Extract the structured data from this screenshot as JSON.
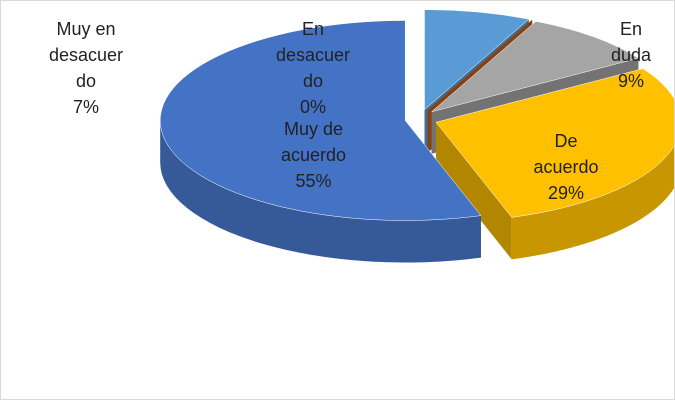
{
  "chart_data": {
    "type": "pie3d",
    "categories": [
      "Muy en desacuerdo",
      "En desacuerdo",
      "En duda",
      "De acuerdo",
      "Muy de acuerdo"
    ],
    "values": [
      7,
      0,
      9,
      29,
      55
    ],
    "value_labels": [
      "7%",
      "0%",
      "9%",
      "29%",
      "55%"
    ],
    "colors": [
      "#5b9bd5",
      "#c55a11",
      "#a5a5a5",
      "#ffc000",
      "#4472c4"
    ]
  }
}
